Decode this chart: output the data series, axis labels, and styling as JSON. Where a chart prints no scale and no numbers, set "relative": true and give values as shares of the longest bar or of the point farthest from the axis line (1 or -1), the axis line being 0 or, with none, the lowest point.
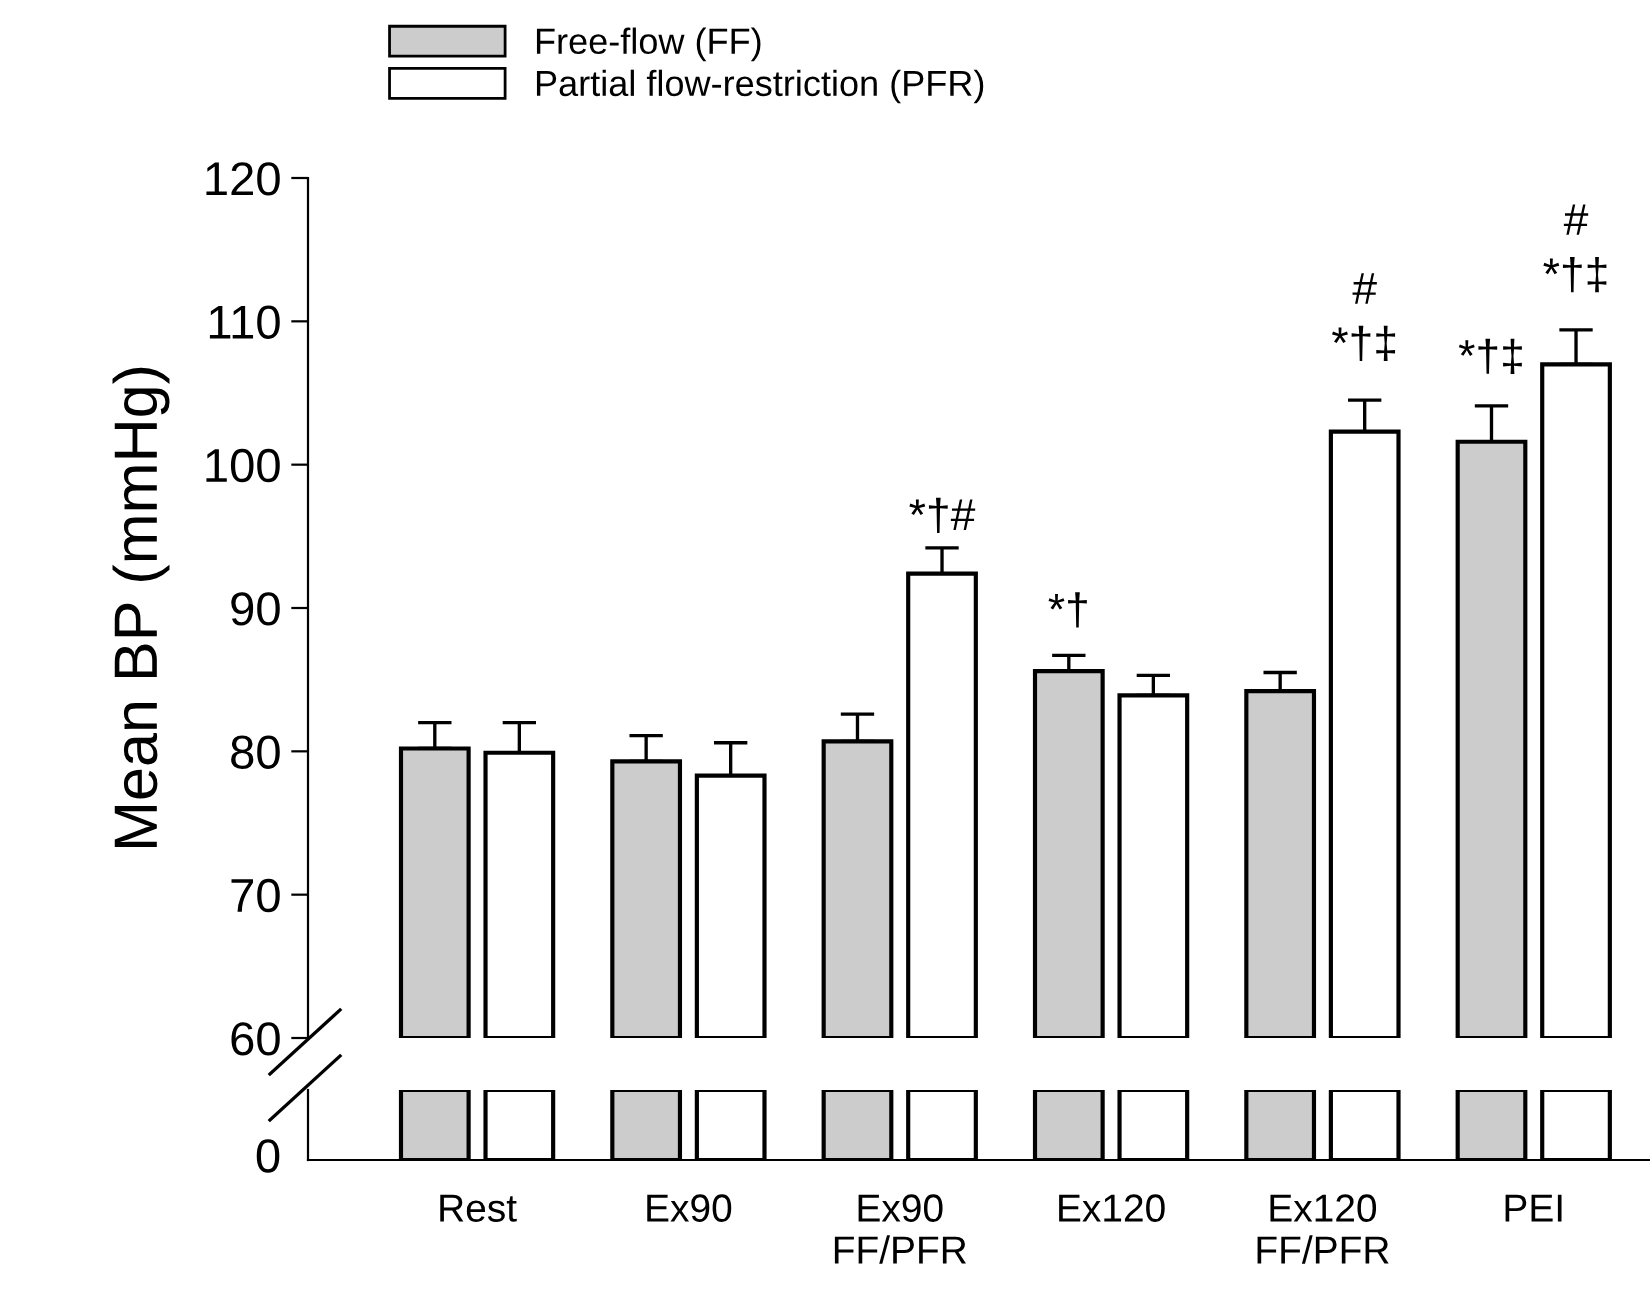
{
  "chart_data": [
    {
      "type": "bar",
      "ylabel": "Mean BP (mmHg)",
      "categories": [
        null,
        null,
        null,
        null,
        null,
        null
      ],
      "series": [
        {
          "name": "Free-flow (FF)",
          "color": "#cccccc",
          "values": [
            80.2,
            79.3,
            80.7,
            85.6,
            84.2,
            101.6
          ],
          "errors": [
            1.8,
            1.8,
            1.9,
            1.1,
            1.3,
            2.5
          ]
        },
        {
          "name": "Partial flow-restriction (PFR)",
          "color": "#ffffff",
          "values": [
            79.9,
            78.3,
            92.4,
            83.9,
            102.3,
            107.0
          ],
          "errors": [
            2.1,
            2.3,
            1.8,
            1.4,
            2.2,
            2.4
          ]
        }
      ],
      "ylim": [
        60,
        120
      ],
      "yticks": [
        60,
        70,
        80,
        90,
        100,
        110,
        120
      ],
      "tick_labels": "y",
      "legend": "top left",
      "grid": false,
      "annotations": [
        "*†#",
        "*†",
        "#\n*†‡",
        "*†‡",
        "#\n*†‡"
      ]
    },
    {
      "type": "bar",
      "categories": [
        "Rest",
        "Ex90",
        "Ex90\nFF/PFR",
        "Ex120",
        "Ex120\nFF/PFR",
        "PEI"
      ],
      "series": [
        {
          "color": "#cccccc",
          "values": [
            1,
            1,
            1,
            1,
            1,
            1
          ]
        },
        {
          "color": "#ffffff",
          "values": [
            1,
            1,
            1,
            1,
            1,
            1
          ]
        }
      ],
      "relative": true,
      "annotations": [
        "0"
      ],
      "grid": false
    }
  ]
}
